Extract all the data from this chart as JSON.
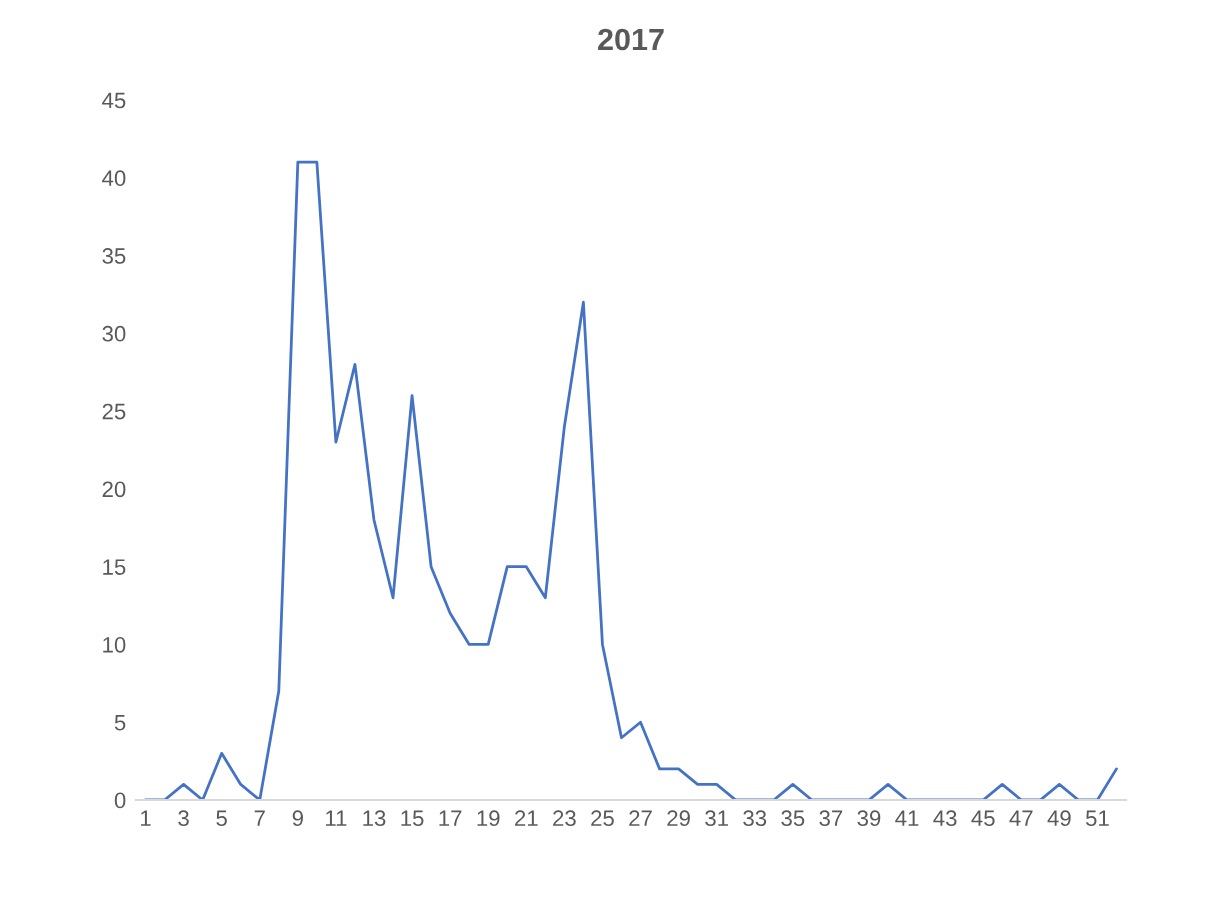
{
  "chart_data": {
    "type": "line",
    "title": "2017",
    "categories": [
      "1",
      null,
      "3",
      null,
      "5",
      null,
      "7",
      null,
      "9",
      null,
      "11",
      null,
      "13",
      null,
      "15",
      null,
      "17",
      null,
      "19",
      null,
      "21",
      null,
      "23",
      null,
      "25",
      null,
      "27",
      null,
      "29",
      null,
      "31",
      null,
      "33",
      null,
      "35",
      null,
      "37",
      null,
      "39",
      null,
      "41",
      null,
      "43",
      null,
      "45",
      null,
      "47",
      null,
      "49",
      null,
      "51",
      null
    ],
    "series": [
      {
        "color": "#4472c4",
        "values": [
          0,
          0,
          1,
          0,
          3,
          1,
          0,
          7,
          41,
          41,
          23,
          28,
          18,
          13,
          26,
          15,
          12,
          10,
          10,
          15,
          15,
          13,
          24,
          32,
          10,
          4,
          5,
          2,
          2,
          1,
          1,
          0,
          0,
          0,
          1,
          0,
          0,
          0,
          0,
          1,
          0,
          0,
          0,
          0,
          0,
          1,
          0,
          0,
          1,
          0,
          0,
          2
        ]
      }
    ],
    "ylim": [
      0,
      45
    ],
    "yticks": [
      0,
      5,
      10,
      15,
      20,
      25,
      30,
      35,
      40,
      45
    ],
    "grid": false,
    "legend": false,
    "marker": "none",
    "line_style": "solid"
  }
}
